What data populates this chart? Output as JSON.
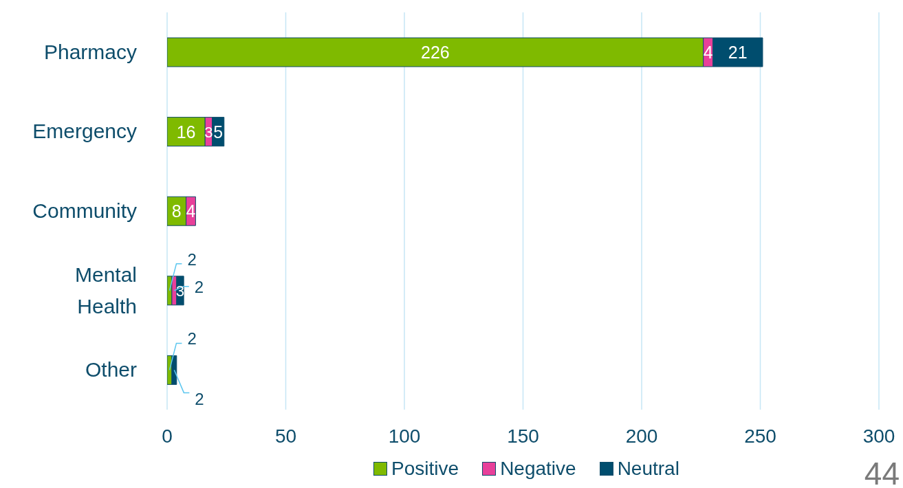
{
  "chart_data": {
    "type": "bar",
    "orientation": "horizontal",
    "stacked": true,
    "categories": [
      "Pharmacy",
      "Emergency",
      "Community",
      "Mental Health",
      "Other"
    ],
    "series": [
      {
        "name": "Positive",
        "color": "#7fba00",
        "values": [
          226,
          16,
          8,
          2,
          2
        ]
      },
      {
        "name": "Negative",
        "color": "#e8409a",
        "values": [
          4,
          3,
          4,
          2,
          null
        ]
      },
      {
        "name": "Neutral",
        "color": "#004d6e",
        "values": [
          21,
          5,
          null,
          3,
          2
        ]
      }
    ],
    "xlim": [
      0,
      300
    ],
    "xticks": [
      0,
      50,
      100,
      150,
      200,
      250,
      300
    ],
    "grid": "x",
    "legend": "bottom",
    "data_labels": true,
    "annotations": [
      "44"
    ]
  }
}
